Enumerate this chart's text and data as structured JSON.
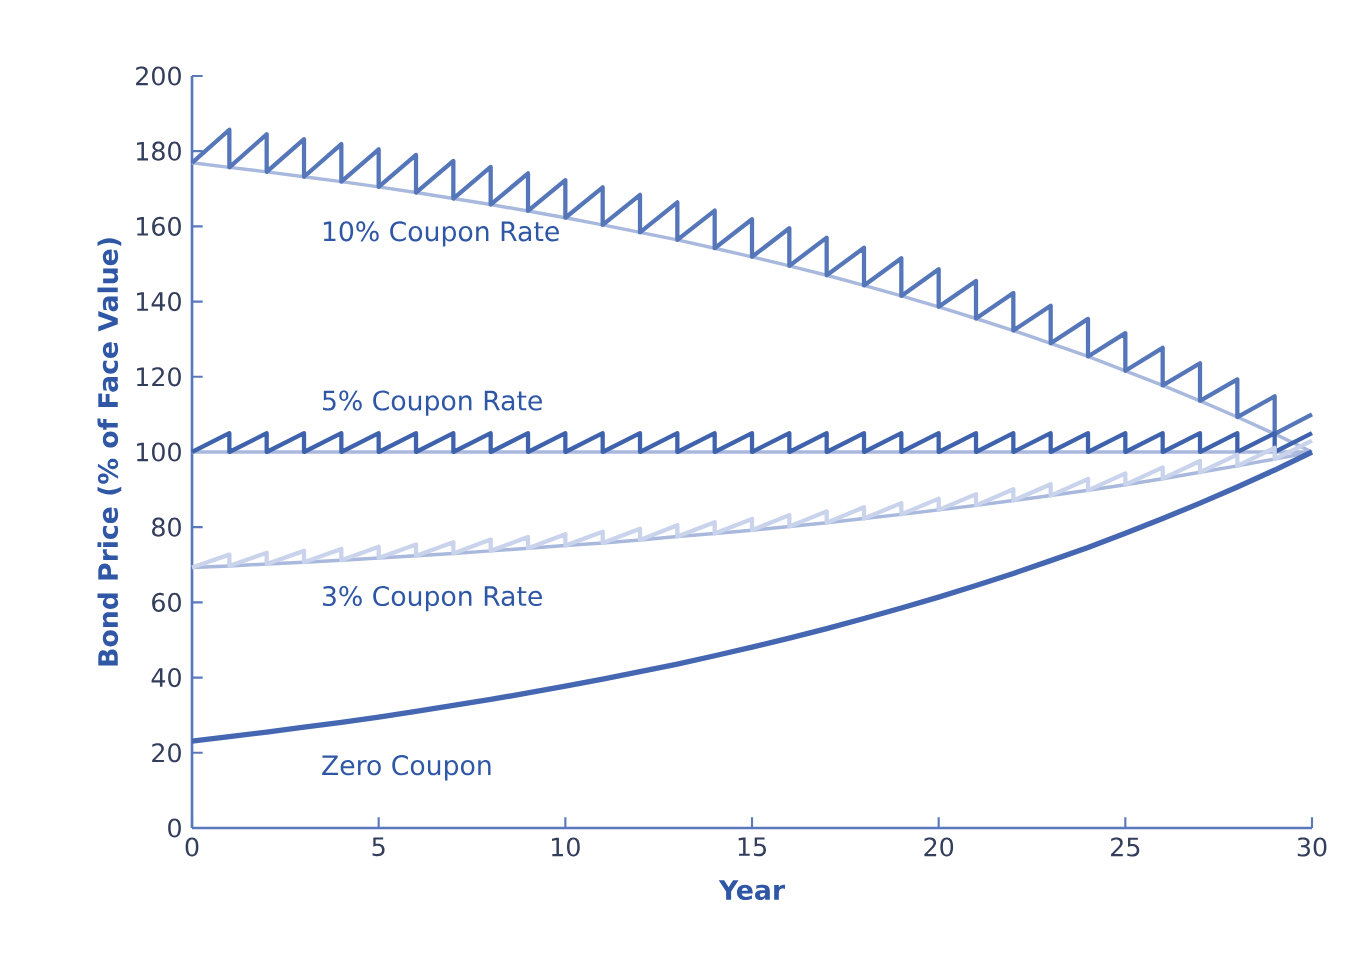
{
  "chart_data": {
    "type": "line",
    "xlabel": "Year",
    "ylabel": "Bond Price (% of Face Value)",
    "x": [
      0,
      1,
      2,
      3,
      4,
      5,
      6,
      7,
      8,
      9,
      10,
      11,
      12,
      13,
      14,
      15,
      16,
      17,
      18,
      19,
      20,
      21,
      22,
      23,
      24,
      25,
      26,
      27,
      28,
      29,
      30
    ],
    "xlim": [
      0,
      30
    ],
    "xticks": [
      0,
      5,
      10,
      15,
      20,
      25,
      30
    ],
    "ylim": [
      0,
      200
    ],
    "yticks": [
      0,
      20,
      40,
      60,
      80,
      100,
      120,
      140,
      160,
      180,
      200
    ],
    "grid": false,
    "marker": "none",
    "line_style": "solid",
    "series": [
      {
        "color": "#a9b9dd",
        "values": [
          176.9,
          175.7,
          174.5,
          173.2,
          171.9,
          170.5,
          169.0,
          167.4,
          165.8,
          164.1,
          162.3,
          160.4,
          158.4,
          156.4,
          154.2,
          151.9,
          149.5,
          147.0,
          144.3,
          141.5,
          138.6,
          135.5,
          132.3,
          128.9,
          125.4,
          121.6,
          117.7,
          113.6,
          109.3,
          104.8,
          100
        ]
      },
      {
        "color": "#5576b9",
        "x": [
          0,
          1,
          1,
          2,
          2,
          3,
          3,
          4,
          4,
          5,
          5,
          6,
          6,
          7,
          7,
          8,
          8,
          9,
          9,
          10,
          10,
          11,
          11,
          12,
          12,
          13,
          13,
          14,
          14,
          15,
          15,
          16,
          16,
          17,
          17,
          18,
          18,
          19,
          19,
          20,
          20,
          21,
          21,
          22,
          22,
          23,
          23,
          24,
          24,
          25,
          25,
          26,
          26,
          27,
          27,
          28,
          28,
          29,
          29,
          30
        ],
        "values": [
          176.9,
          185.7,
          175.7,
          184.5,
          174.5,
          183.2,
          173.2,
          181.9,
          171.9,
          180.5,
          170.5,
          179.0,
          169.0,
          177.4,
          167.4,
          175.8,
          165.8,
          174.1,
          164.1,
          172.3,
          162.3,
          170.4,
          160.4,
          168.4,
          158.4,
          166.4,
          156.4,
          164.2,
          154.2,
          161.9,
          151.9,
          159.5,
          149.5,
          157.0,
          147.0,
          154.3,
          144.3,
          151.5,
          141.5,
          148.6,
          138.6,
          145.5,
          135.5,
          142.3,
          132.3,
          138.9,
          128.9,
          135.4,
          125.4,
          131.6,
          121.6,
          127.7,
          117.7,
          123.6,
          113.6,
          119.3,
          109.3,
          114.8,
          104.8,
          110
        ]
      },
      {
        "color": "#a9b9dd",
        "x": [
          0,
          30
        ],
        "values": [
          100,
          100
        ]
      },
      {
        "color": "#3f62ad",
        "x": [
          0,
          1,
          1,
          2,
          2,
          3,
          3,
          4,
          4,
          5,
          5,
          6,
          6,
          7,
          7,
          8,
          8,
          9,
          9,
          10,
          10,
          11,
          11,
          12,
          12,
          13,
          13,
          14,
          14,
          15,
          15,
          16,
          16,
          17,
          17,
          18,
          18,
          19,
          19,
          20,
          20,
          21,
          21,
          22,
          22,
          23,
          23,
          24,
          24,
          25,
          25,
          26,
          26,
          27,
          27,
          28,
          28,
          29,
          29,
          30
        ],
        "values": [
          100,
          105,
          100,
          105,
          100,
          105,
          100,
          105,
          100,
          105,
          100,
          105,
          100,
          105,
          100,
          105,
          100,
          105,
          100,
          105,
          100,
          105,
          100,
          105,
          100,
          105,
          100,
          105,
          100,
          105,
          100,
          105,
          100,
          105,
          100,
          105,
          100,
          105,
          100,
          105,
          100,
          105,
          100,
          105,
          100,
          105,
          100,
          105,
          100,
          105,
          100,
          105,
          100,
          105,
          100,
          105,
          100,
          105,
          100,
          105
        ]
      },
      {
        "color": "#a9b9dd",
        "values": [
          69.3,
          69.7,
          70.2,
          70.7,
          71.2,
          71.8,
          72.4,
          73.0,
          73.7,
          74.4,
          75.1,
          75.8,
          76.6,
          77.5,
          78.3,
          79.2,
          80.2,
          81.2,
          82.3,
          83.4,
          84.6,
          85.8,
          87.1,
          88.4,
          89.8,
          91.3,
          92.9,
          94.6,
          96.3,
          98.1,
          100
        ]
      },
      {
        "color": "#c9d3eb",
        "x": [
          0,
          1,
          1,
          2,
          2,
          3,
          3,
          4,
          4,
          5,
          5,
          6,
          6,
          7,
          7,
          8,
          8,
          9,
          9,
          10,
          10,
          11,
          11,
          12,
          12,
          13,
          13,
          14,
          14,
          15,
          15,
          16,
          16,
          17,
          17,
          18,
          18,
          19,
          19,
          20,
          20,
          21,
          21,
          22,
          22,
          23,
          23,
          24,
          24,
          25,
          25,
          26,
          26,
          27,
          27,
          28,
          28,
          29,
          29,
          30
        ],
        "values": [
          69.3,
          72.7,
          69.7,
          73.2,
          70.2,
          73.7,
          70.7,
          74.2,
          71.2,
          74.8,
          71.8,
          75.4,
          72.4,
          76.0,
          73.0,
          76.7,
          73.7,
          77.4,
          74.4,
          78.1,
          75.1,
          78.8,
          75.8,
          79.6,
          76.6,
          80.5,
          77.5,
          81.3,
          78.3,
          82.2,
          79.2,
          83.2,
          80.2,
          84.2,
          81.2,
          85.3,
          82.3,
          86.4,
          83.4,
          87.6,
          84.6,
          88.8,
          85.8,
          90.1,
          87.1,
          91.4,
          88.4,
          92.8,
          89.8,
          94.3,
          91.3,
          95.9,
          92.9,
          97.6,
          94.6,
          99.3,
          96.3,
          101.1,
          98.1,
          103
        ]
      },
      {
        "color": "#4567b2",
        "values": [
          23.1,
          24.3,
          25.5,
          26.8,
          28.1,
          29.5,
          31.0,
          32.6,
          34.2,
          35.9,
          37.7,
          39.6,
          41.6,
          43.6,
          45.8,
          48.1,
          50.5,
          53.0,
          55.7,
          58.5,
          61.4,
          64.5,
          67.7,
          71.1,
          74.6,
          78.4,
          82.3,
          86.4,
          90.7,
          95.2,
          100
        ]
      }
    ],
    "annotations": [
      "10% Coupon Rate",
      "5% Coupon Rate",
      "3% Coupon Rate",
      "Zero Coupon"
    ]
  }
}
